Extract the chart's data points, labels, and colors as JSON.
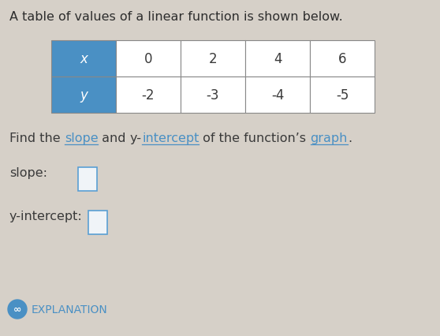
{
  "title_text": "A table of values of a linear function is shown below.",
  "title_color": "#2d2d2d",
  "title_fontsize": 11.5,
  "bg_color": "#d6d0c8",
  "table_x_header": "x",
  "table_y_header": "y",
  "x_values": [
    "0",
    "2",
    "4",
    "6"
  ],
  "y_values": [
    "-2",
    "-3",
    "-4",
    "-5"
  ],
  "header_bg": "#4a90c4",
  "header_text_color": "#ffffff",
  "cell_bg": "#ffffff",
  "cell_border_color": "#888888",
  "link_color": "#4a90c4",
  "find_fontsize": 11.5,
  "dark_color": "#3a3a3a",
  "slope_label": "slope:",
  "yint_label": "y-intercept:",
  "label_fontsize": 11.5,
  "explanation_text": "EXPLANATION",
  "explanation_color": "#4a90c4",
  "explanation_fontsize": 10,
  "infinity_color": "#4a90c4",
  "input_box_color": "#f0f4f8",
  "input_box_edge_color": "#5a9fd4"
}
